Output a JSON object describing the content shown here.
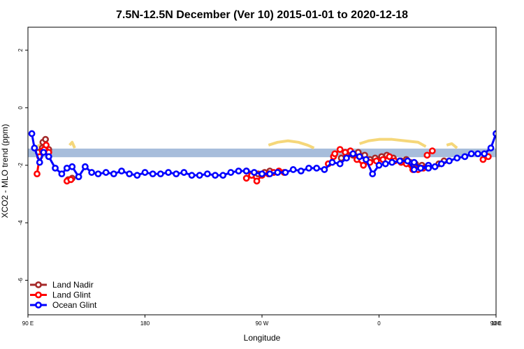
{
  "chart_data": {
    "type": "line",
    "title": "7.5N-12.5N December (Ver 10)   2015-01-01 to 2020-12-18",
    "xlabel": "Longitude",
    "ylabel": "XCO2 - MLO trend (ppm)",
    "xlim": [
      90,
      450
    ],
    "ylim": [
      -7.2,
      2.8
    ],
    "x_ticks": [
      {
        "value": 90,
        "label": "90 E"
      },
      {
        "value": 180,
        "label": "180"
      },
      {
        "value": 270,
        "label": "90 W"
      },
      {
        "value": 360,
        "label": "0"
      },
      {
        "value": 450,
        "label": "90 E"
      },
      {
        "value": 540,
        "label": "180"
      }
    ],
    "y_ticks": [
      {
        "value": 2,
        "label": "2"
      },
      {
        "value": 0,
        "label": "0"
      },
      {
        "value": -2,
        "label": "-2"
      },
      {
        "value": -4,
        "label": "-4"
      },
      {
        "value": -6,
        "label": "-6"
      }
    ],
    "band": {
      "y_min": -1.72,
      "y_max": -1.42,
      "color": "#a7bddb"
    },
    "land_mask_color": "#f5d77a",
    "land_mask_lines": [
      {
        "x": [
          97,
          101,
          104,
          106
        ],
        "y": [
          -1.35,
          -1.25,
          -1.3,
          -1.45
        ]
      },
      {
        "x": [
          122,
          124,
          126
        ],
        "y": [
          -1.3,
          -1.2,
          -1.4
        ]
      },
      {
        "x": [
          275,
          282,
          290,
          298,
          305,
          310
        ],
        "y": [
          -1.3,
          -1.2,
          -1.15,
          -1.2,
          -1.3,
          -1.4
        ]
      },
      {
        "x": [
          345,
          352,
          360,
          370,
          380,
          390,
          396
        ],
        "y": [
          -1.25,
          -1.15,
          -1.1,
          -1.1,
          -1.15,
          -1.2,
          -1.35
        ]
      },
      {
        "x": [
          412,
          416,
          420
        ],
        "y": [
          -1.3,
          -1.25,
          -1.4
        ]
      },
      {
        "x": [
          453,
          458,
          462,
          466
        ],
        "y": [
          -1.35,
          -1.25,
          -1.3,
          -1.45
        ]
      },
      {
        "x": [
          480,
          483,
          486
        ],
        "y": [
          -1.3,
          -1.2,
          -1.4
        ]
      }
    ],
    "series": [
      {
        "name": "Land Nadir",
        "color": "#a52a2a",
        "segments": [
          {
            "x": [
              98,
              101
            ],
            "y": [
              -1.55,
              -1.4
            ]
          },
          {
            "x": [
              101.5,
              103.5,
              106
            ],
            "y": [
              -1.2,
              -1.1,
              -1.45
            ]
          },
          {
            "x": [
              121,
              124
            ],
            "y": [
              -2.5,
              -2.45
            ]
          },
          {
            "x": [
              258,
              262,
              267,
              272,
              276
            ],
            "y": [
              -2.2,
              -2.35,
              -2.3,
              -2.25,
              -2.2
            ]
          },
          {
            "x": [
              331,
              335
            ],
            "y": [
              -1.75,
              -1.6
            ]
          },
          {
            "x": [
              340,
              344,
              349,
              353,
              357,
              362,
              366,
              371
            ],
            "y": [
              -1.65,
              -1.55,
              -1.65,
              -1.8,
              -1.75,
              -1.7,
              -1.65,
              -1.75
            ]
          },
          {
            "x": [
              377,
              381,
              384,
              388,
              393
            ],
            "y": [
              -1.85,
              -1.8,
              -1.9,
              -1.95,
              -2.0
            ]
          },
          {
            "x": [
              406,
              410
            ],
            "y": [
              -1.95,
              -1.85
            ]
          },
          {
            "x": [
              457,
              461
            ],
            "y": [
              -1.55,
              -1.4
            ]
          },
          {
            "x": [
              462,
              464,
              467
            ],
            "y": [
              -1.2,
              -1.1,
              -1.45
            ]
          },
          {
            "x": [
              481,
              484
            ],
            "y": [
              -2.5,
              -2.45
            ]
          }
        ]
      },
      {
        "name": "Land Glint",
        "color": "#ff0000",
        "segments": [
          {
            "x": [
              97,
              99,
              101,
              102.5,
              104,
              106
            ],
            "y": [
              -2.3,
              -1.7,
              -1.5,
              -1.45,
              -1.3,
              -1.55
            ]
          },
          {
            "x": [
              120,
              123
            ],
            "y": [
              -2.55,
              -2.5
            ]
          },
          {
            "x": [
              258,
              262,
              266,
              270,
              275,
              279,
              283,
              287
            ],
            "y": [
              -2.45,
              -2.35,
              -2.55,
              -2.35,
              -2.3,
              -2.25,
              -2.2,
              -2.25
            ]
          },
          {
            "x": [
              321,
              325
            ],
            "y": [
              -1.95,
              -1.7
            ]
          },
          {
            "x": [
              326,
              330,
              334,
              338,
              343,
              348,
              353,
              358,
              363,
              368,
              372,
              377,
              381,
              386,
              390,
              394
            ],
            "y": [
              -1.6,
              -1.45,
              -1.55,
              -1.5,
              -1.8,
              -2.0,
              -1.9,
              -1.85,
              -1.8,
              -1.7,
              -1.85,
              -1.9,
              -1.95,
              -2.15,
              -2.15,
              -2.1
            ]
          },
          {
            "x": [
              397,
              401
            ],
            "y": [
              -1.65,
              -1.5
            ]
          },
          {
            "x": [
              440,
              444
            ],
            "y": [
              -1.8,
              -1.7
            ]
          },
          {
            "x": [
              458,
              460,
              462,
              463.5,
              465,
              467
            ],
            "y": [
              -2.3,
              -1.7,
              -1.5,
              -1.45,
              -1.3,
              -1.55
            ]
          },
          {
            "x": [
              480,
              483
            ],
            "y": [
              -2.55,
              -2.5
            ]
          }
        ]
      },
      {
        "name": "Ocean Glint",
        "color": "#0000ff",
        "segments": [
          {
            "x": [
              93,
              95,
              99,
              102,
              106,
              111,
              116,
              120,
              124,
              129,
              134,
              139,
              144,
              150,
              156,
              162,
              168,
              174,
              180,
              186,
              192,
              198,
              204,
              210,
              216,
              222,
              228,
              234,
              240,
              246,
              252,
              258,
              264,
              270,
              276,
              282,
              288,
              294,
              300,
              306,
              312,
              318,
              324,
              330,
              335,
              340,
              345,
              350,
              355,
              360,
              365,
              370,
              376,
              382,
              387,
              392,
              398,
              403,
              408,
              414,
              420,
              426,
              431,
              436,
              441,
              446,
              450,
              454,
              456,
              460,
              463,
              466,
              471,
              476,
              480,
              484,
              488,
              492,
              496,
              500,
              506,
              512,
              518,
              524,
              530,
              536,
              540
            ],
            "y": [
              -0.9,
              -1.4,
              -1.9,
              -1.55,
              -1.7,
              -2.1,
              -2.3,
              -2.1,
              -2.05,
              -2.4,
              -2.05,
              -2.25,
              -2.3,
              -2.25,
              -2.3,
              -2.2,
              -2.3,
              -2.35,
              -2.25,
              -2.3,
              -2.3,
              -2.25,
              -2.3,
              -2.25,
              -2.35,
              -2.35,
              -2.3,
              -2.35,
              -2.35,
              -2.25,
              -2.2,
              -2.2,
              -2.25,
              -2.3,
              -2.3,
              -2.25,
              -2.25,
              -2.15,
              -2.2,
              -2.1,
              -2.1,
              -2.15,
              -1.9,
              -1.95,
              -1.75,
              -1.6,
              -1.7,
              -1.8,
              -2.3,
              -2.0,
              -1.95,
              -1.9,
              -1.85,
              -1.85,
              -2.15,
              -2.1,
              -2.0,
              -2.05,
              -1.95,
              -1.85,
              -1.75,
              -1.7,
              -1.6,
              -1.6,
              -1.6,
              -1.4,
              -0.9,
              -1.4,
              -1.9,
              -1.55,
              -1.7,
              -2.1,
              -2.3,
              -2.1,
              -2.05,
              -2.4,
              -2.05,
              -2.25,
              -2.3,
              -2.25,
              -2.3,
              -2.2,
              -2.3,
              -2.35,
              -2.25,
              -2.3,
              -2.4
            ]
          },
          {
            "x": [
              387,
              392,
              398
            ],
            "y": [
              -1.9,
              -2.1,
              -2.1
            ]
          }
        ]
      }
    ],
    "legend_position": "bottom-left"
  }
}
